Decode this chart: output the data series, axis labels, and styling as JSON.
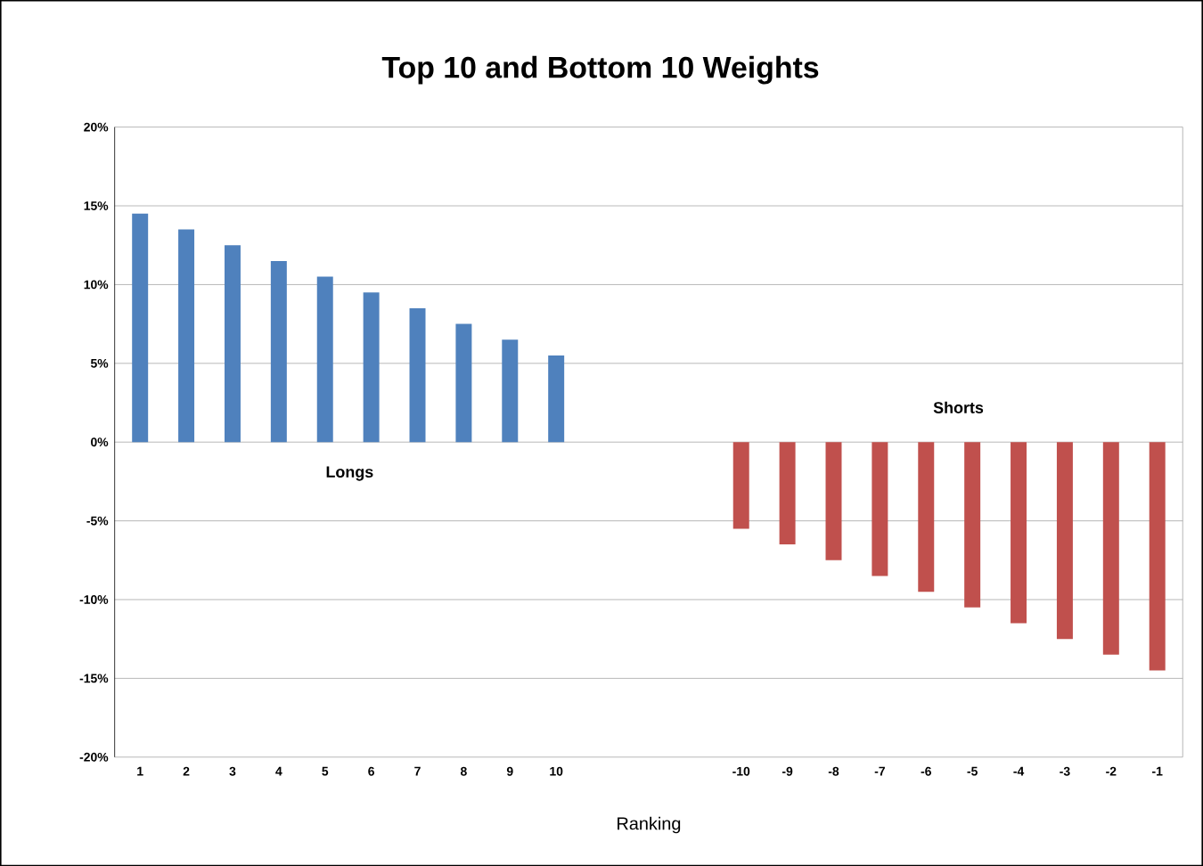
{
  "chart_data": {
    "type": "bar",
    "title": "Top 10 and Bottom 10 Weights",
    "xlabel": "Ranking",
    "categories": [
      "1",
      "2",
      "3",
      "4",
      "5",
      "6",
      "7",
      "8",
      "9",
      "10",
      null,
      null,
      null,
      "-10",
      "-9",
      "-8",
      "-7",
      "-6",
      "-5",
      "-4",
      "-3",
      "-2",
      "-1"
    ],
    "values": [
      14.5,
      13.5,
      12.5,
      11.5,
      10.5,
      9.5,
      8.5,
      7.5,
      6.5,
      5.5,
      null,
      null,
      null,
      -5.5,
      -6.5,
      -7.5,
      -8.5,
      -9.5,
      -10.5,
      -11.5,
      -12.5,
      -13.5,
      -14.5
    ],
    "colors": [
      "#4f81bd",
      "#4f81bd",
      "#4f81bd",
      "#4f81bd",
      "#4f81bd",
      "#4f81bd",
      "#4f81bd",
      "#4f81bd",
      "#4f81bd",
      "#4f81bd",
      null,
      null,
      null,
      "#c0504d",
      "#c0504d",
      "#c0504d",
      "#c0504d",
      "#c0504d",
      "#c0504d",
      "#c0504d",
      "#c0504d",
      "#c0504d",
      "#c0504d"
    ],
    "ylim": [
      -20,
      20
    ],
    "yticks": [
      {
        "value": -20,
        "label": "-20%"
      },
      {
        "value": -15,
        "label": "-15%"
      },
      {
        "value": -10,
        "label": "-10%"
      },
      {
        "value": -5,
        "label": "-5%"
      },
      {
        "value": 0,
        "label": "0%"
      },
      {
        "value": 5,
        "label": "5%"
      },
      {
        "value": 10,
        "label": "10%"
      },
      {
        "value": 15,
        "label": "15%"
      },
      {
        "value": 20,
        "label": "20%"
      }
    ],
    "grid": "y",
    "annotations": [
      "Longs",
      "Shorts"
    ]
  }
}
